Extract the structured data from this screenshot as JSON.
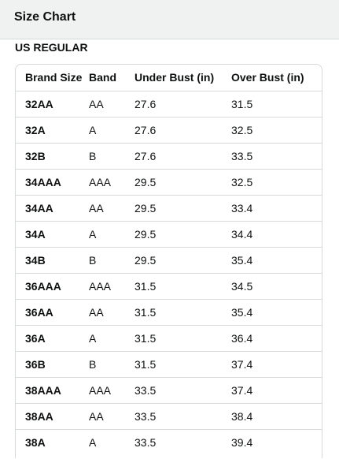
{
  "header": {
    "title": "Size Chart"
  },
  "section": {
    "label": "US REGULAR"
  },
  "table": {
    "columns": [
      "Brand Size",
      "Band",
      "Under Bust (in)",
      "Over Bust (in)"
    ],
    "rows": [
      [
        "32AA",
        "AA",
        "27.6",
        "31.5"
      ],
      [
        "32A",
        "A",
        "27.6",
        "32.5"
      ],
      [
        "32B",
        "B",
        "27.6",
        "33.5"
      ],
      [
        "34AAA",
        "AAA",
        "29.5",
        "32.5"
      ],
      [
        "34AA",
        "AA",
        "29.5",
        "33.4"
      ],
      [
        "34A",
        "A",
        "29.5",
        "34.4"
      ],
      [
        "34B",
        "B",
        "29.5",
        "35.4"
      ],
      [
        "36AAA",
        "AAA",
        "31.5",
        "34.5"
      ],
      [
        "36AA",
        "AA",
        "31.5",
        "35.4"
      ],
      [
        "36A",
        "A",
        "31.5",
        "36.4"
      ],
      [
        "36B",
        "B",
        "31.5",
        "37.4"
      ],
      [
        "38AAA",
        "AAA",
        "33.5",
        "37.4"
      ],
      [
        "38AA",
        "AA",
        "33.5",
        "38.4"
      ],
      [
        "38A",
        "A",
        "33.5",
        "39.4"
      ]
    ]
  }
}
